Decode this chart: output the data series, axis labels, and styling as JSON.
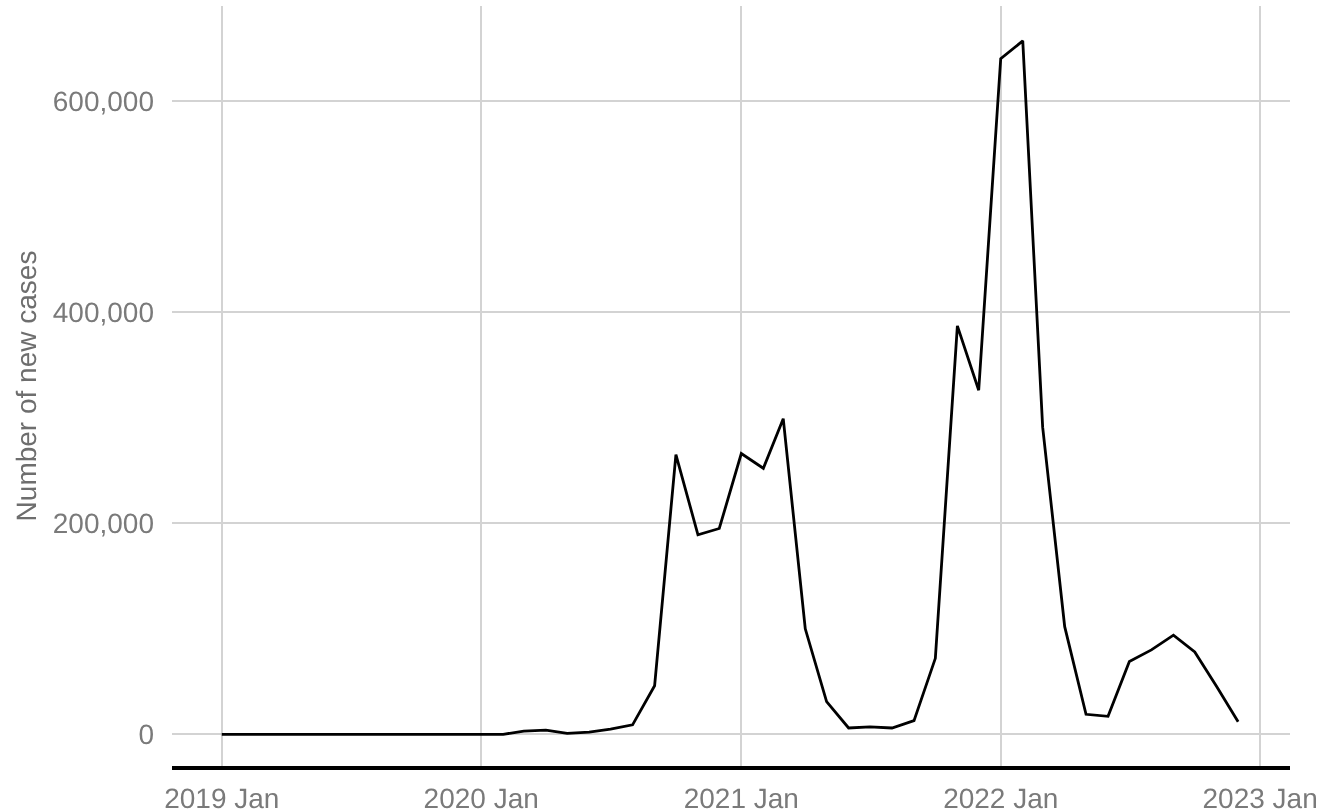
{
  "chart_data": {
    "type": "line",
    "ylabel": "Number of new cases",
    "x": [
      "2019-01",
      "2019-02",
      "2019-03",
      "2019-04",
      "2019-05",
      "2019-06",
      "2019-07",
      "2019-08",
      "2019-09",
      "2019-10",
      "2019-11",
      "2019-12",
      "2020-01",
      "2020-02",
      "2020-03",
      "2020-04",
      "2020-05",
      "2020-06",
      "2020-07",
      "2020-08",
      "2020-09",
      "2020-10",
      "2020-11",
      "2020-12",
      "2021-01",
      "2021-02",
      "2021-03",
      "2021-04",
      "2021-05",
      "2021-06",
      "2021-07",
      "2021-08",
      "2021-09",
      "2021-10",
      "2021-11",
      "2021-12",
      "2022-01",
      "2022-02",
      "2022-03",
      "2022-04",
      "2022-05",
      "2022-06",
      "2022-07",
      "2022-08",
      "2022-09",
      "2022-10",
      "2022-11",
      "2022-12"
    ],
    "values": [
      0,
      0,
      0,
      0,
      0,
      0,
      0,
      0,
      0,
      0,
      0,
      0,
      0,
      0,
      3000,
      4000,
      1000,
      2000,
      5000,
      9000,
      46000,
      265000,
      189000,
      195000,
      266000,
      252000,
      299000,
      100000,
      31000,
      6000,
      7000,
      6000,
      13000,
      72000,
      387000,
      326000,
      640000,
      657000,
      291000,
      102000,
      19000,
      17000,
      69000,
      80000,
      94000,
      78000,
      45000,
      12000
    ],
    "color": "#000000",
    "line_style": "solid",
    "xlim": [
      "2018-10-23",
      "2023-02-12"
    ],
    "xticks": [
      {
        "value": "2019-01",
        "label": "2019 Jan"
      },
      {
        "value": "2020-01",
        "label": "2020 Jan"
      },
      {
        "value": "2021-01",
        "label": "2021 Jan"
      },
      {
        "value": "2022-01",
        "label": "2022 Jan"
      },
      {
        "value": "2023-01",
        "label": "2023 Jan"
      }
    ],
    "ylim": [
      -30000,
      690000
    ],
    "yticks": [
      0,
      {
        "value": 200000,
        "label": "200,000"
      },
      {
        "value": 400000,
        "label": "400,000"
      },
      {
        "value": 600000,
        "label": "600,000"
      }
    ],
    "grid": true
  }
}
